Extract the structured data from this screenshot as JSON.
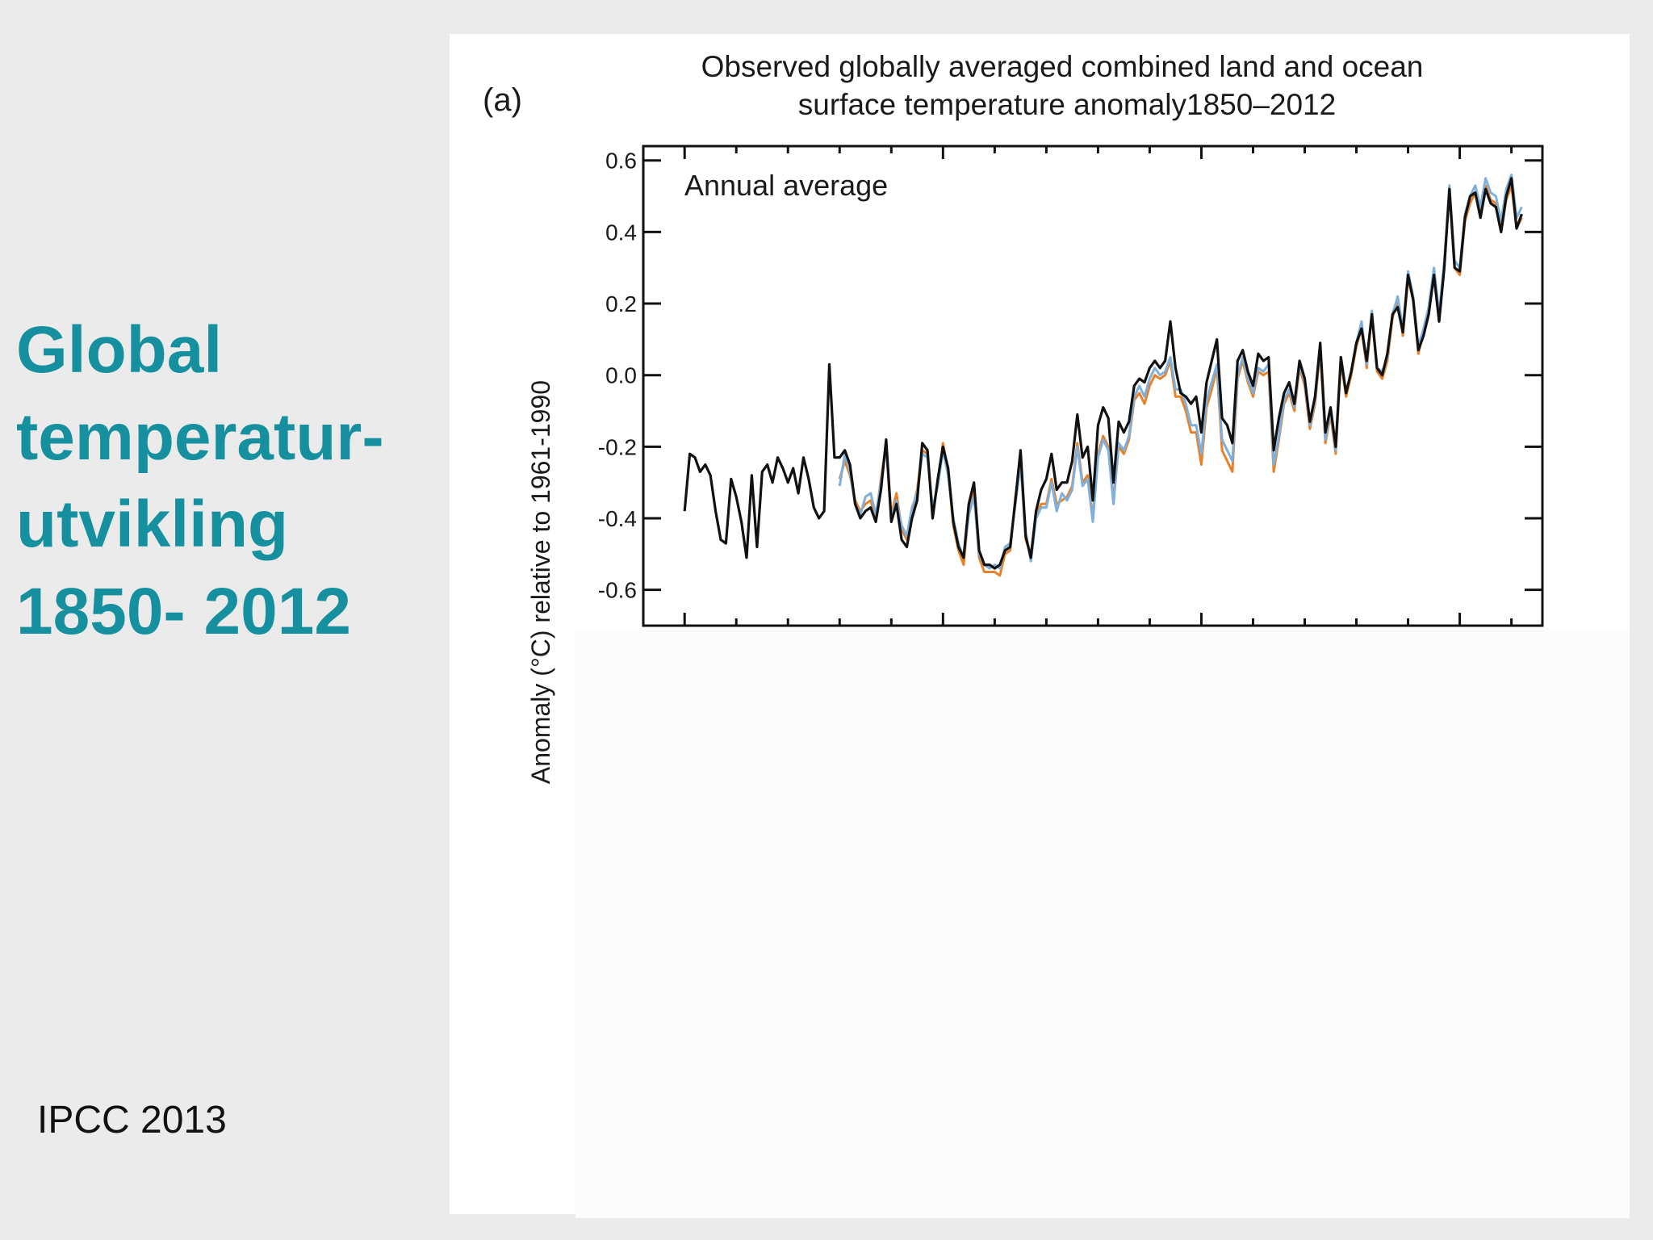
{
  "slide": {
    "title_lines": [
      "Global",
      "temperatur-",
      "utvikling",
      "1850- 2012"
    ],
    "source": "IPCC 2013"
  },
  "chart_data": {
    "type": "line",
    "panel_label": "(a)",
    "title_lines": [
      "Observed globally averaged combined land and ocean",
      "surface temperature anomaly1850–2012"
    ],
    "annotation": "Annual average",
    "ylabel": "Anomaly (°C) relative to 1961-1990",
    "xlim": [
      1842,
      2016
    ],
    "ylim": [
      -0.7,
      0.64
    ],
    "yticks": [
      0.6,
      0.4,
      0.2,
      0.0,
      -0.2,
      -0.4,
      -0.6
    ],
    "ytick_labels": [
      "0.6",
      "0.4",
      "0.2",
      "0.0",
      "-0.2",
      "-0.4",
      "-0.6"
    ],
    "colors": {
      "black": "#111111",
      "orange": "#e8822a",
      "blue": "#7fb0dc"
    },
    "series": [
      {
        "color": "black",
        "x": [
          1850,
          1851,
          1852,
          1853,
          1854,
          1855,
          1856,
          1857,
          1858,
          1859,
          1860,
          1861,
          1862,
          1863,
          1864,
          1865,
          1866,
          1867,
          1868,
          1869,
          1870,
          1871,
          1872,
          1873,
          1874,
          1875,
          1876,
          1877,
          1878,
          1879,
          1880,
          1881,
          1882,
          1883,
          1884,
          1885,
          1886,
          1887,
          1888,
          1889,
          1890,
          1891,
          1892,
          1893,
          1894,
          1895,
          1896,
          1897,
          1898,
          1899,
          1900,
          1901,
          1902,
          1903,
          1904,
          1905,
          1906,
          1907,
          1908,
          1909,
          1910,
          1911,
          1912,
          1913,
          1914,
          1915,
          1916,
          1917,
          1918,
          1919,
          1920,
          1921,
          1922,
          1923,
          1924,
          1925,
          1926,
          1927,
          1928,
          1929,
          1930,
          1931,
          1932,
          1933,
          1934,
          1935,
          1936,
          1937,
          1938,
          1939,
          1940,
          1941,
          1942,
          1943,
          1944,
          1945,
          1946,
          1947,
          1948,
          1949,
          1950,
          1951,
          1952,
          1953,
          1954,
          1955,
          1956,
          1957,
          1958,
          1959,
          1960,
          1961,
          1962,
          1963,
          1964,
          1965,
          1966,
          1967,
          1968,
          1969,
          1970,
          1971,
          1972,
          1973,
          1974,
          1975,
          1976,
          1977,
          1978,
          1979,
          1980,
          1981,
          1982,
          1983,
          1984,
          1985,
          1986,
          1987,
          1988,
          1989,
          1990,
          1991,
          1992,
          1993,
          1994,
          1995,
          1996,
          1997,
          1998,
          1999,
          2000,
          2001,
          2002,
          2003,
          2004,
          2005,
          2006,
          2007,
          2008,
          2009,
          2010,
          2011,
          2012
        ],
        "values": [
          -0.38,
          -0.22,
          -0.23,
          -0.27,
          -0.25,
          -0.28,
          -0.38,
          -0.46,
          -0.47,
          -0.29,
          -0.34,
          -0.41,
          -0.51,
          -0.28,
          -0.48,
          -0.27,
          -0.25,
          -0.3,
          -0.23,
          -0.26,
          -0.3,
          -0.26,
          -0.33,
          -0.23,
          -0.29,
          -0.37,
          -0.4,
          -0.38,
          0.03,
          -0.23,
          -0.23,
          -0.21,
          -0.25,
          -0.36,
          -0.4,
          -0.38,
          -0.37,
          -0.41,
          -0.32,
          -0.18,
          -0.41,
          -0.36,
          -0.46,
          -0.48,
          -0.4,
          -0.35,
          -0.19,
          -0.21,
          -0.4,
          -0.29,
          -0.2,
          -0.26,
          -0.41,
          -0.48,
          -0.51,
          -0.36,
          -0.3,
          -0.49,
          -0.53,
          -0.53,
          -0.54,
          -0.53,
          -0.49,
          -0.48,
          -0.35,
          -0.21,
          -0.45,
          -0.51,
          -0.38,
          -0.32,
          -0.29,
          -0.22,
          -0.32,
          -0.3,
          -0.3,
          -0.24,
          -0.11,
          -0.23,
          -0.2,
          -0.35,
          -0.14,
          -0.09,
          -0.12,
          -0.3,
          -0.13,
          -0.16,
          -0.13,
          -0.03,
          -0.01,
          -0.02,
          0.02,
          0.04,
          0.02,
          0.04,
          0.15,
          0.02,
          -0.05,
          -0.06,
          -0.08,
          -0.06,
          -0.16,
          -0.02,
          0.04,
          0.1,
          -0.12,
          -0.14,
          -0.19,
          0.04,
          0.07,
          0.01,
          -0.03,
          0.06,
          0.04,
          0.05,
          -0.21,
          -0.12,
          -0.05,
          -0.02,
          -0.08,
          0.04,
          -0.01,
          -0.13,
          -0.06,
          0.09,
          -0.16,
          -0.09,
          -0.2,
          0.05,
          -0.05,
          0.01,
          0.09,
          0.13,
          0.04,
          0.17,
          0.02,
          0.0,
          0.06,
          0.17,
          0.19,
          0.12,
          0.28,
          0.21,
          0.07,
          0.11,
          0.17,
          0.28,
          0.15,
          0.3,
          0.52,
          0.3,
          0.29,
          0.44,
          0.5,
          0.51,
          0.44,
          0.52,
          0.48,
          0.47,
          0.4,
          0.5,
          0.55,
          0.41,
          0.45
        ]
      },
      {
        "color": "orange",
        "x": [
          1880,
          1881,
          1882,
          1883,
          1884,
          1885,
          1886,
          1887,
          1888,
          1889,
          1890,
          1891,
          1892,
          1893,
          1894,
          1895,
          1896,
          1897,
          1898,
          1899,
          1900,
          1901,
          1902,
          1903,
          1904,
          1905,
          1906,
          1907,
          1908,
          1909,
          1910,
          1911,
          1912,
          1913,
          1914,
          1915,
          1916,
          1917,
          1918,
          1919,
          1920,
          1921,
          1922,
          1923,
          1924,
          1925,
          1926,
          1927,
          1928,
          1929,
          1930,
          1931,
          1932,
          1933,
          1934,
          1935,
          1936,
          1937,
          1938,
          1939,
          1940,
          1941,
          1942,
          1943,
          1944,
          1945,
          1946,
          1947,
          1948,
          1949,
          1950,
          1951,
          1952,
          1953,
          1954,
          1955,
          1956,
          1957,
          1958,
          1959,
          1960,
          1961,
          1962,
          1963,
          1964,
          1965,
          1966,
          1967,
          1968,
          1969,
          1970,
          1971,
          1972,
          1973,
          1974,
          1975,
          1976,
          1977,
          1978,
          1979,
          1980,
          1981,
          1982,
          1983,
          1984,
          1985,
          1986,
          1987,
          1988,
          1989,
          1990,
          1991,
          1992,
          1993,
          1994,
          1995,
          1996,
          1997,
          1998,
          1999,
          2000,
          2001,
          2002,
          2003,
          2004,
          2005,
          2006,
          2007,
          2008,
          2009,
          2010,
          2011,
          2012
        ],
        "values": [
          -0.29,
          -0.24,
          -0.28,
          -0.35,
          -0.38,
          -0.36,
          -0.35,
          -0.4,
          -0.29,
          -0.19,
          -0.39,
          -0.33,
          -0.43,
          -0.46,
          -0.38,
          -0.32,
          -0.21,
          -0.22,
          -0.38,
          -0.3,
          -0.19,
          -0.27,
          -0.42,
          -0.49,
          -0.53,
          -0.38,
          -0.32,
          -0.51,
          -0.55,
          -0.55,
          -0.55,
          -0.56,
          -0.5,
          -0.49,
          -0.34,
          -0.24,
          -0.46,
          -0.5,
          -0.39,
          -0.36,
          -0.36,
          -0.29,
          -0.36,
          -0.35,
          -0.34,
          -0.31,
          -0.19,
          -0.3,
          -0.28,
          -0.4,
          -0.22,
          -0.17,
          -0.2,
          -0.35,
          -0.2,
          -0.22,
          -0.18,
          -0.07,
          -0.05,
          -0.08,
          -0.03,
          0.0,
          -0.01,
          0.0,
          0.04,
          -0.06,
          -0.06,
          -0.1,
          -0.16,
          -0.16,
          -0.25,
          -0.09,
          -0.04,
          0.02,
          -0.21,
          -0.24,
          -0.27,
          -0.01,
          0.04,
          -0.02,
          -0.06,
          0.01,
          0.0,
          0.01,
          -0.27,
          -0.18,
          -0.08,
          -0.05,
          -0.1,
          0.02,
          -0.03,
          -0.15,
          -0.08,
          0.07,
          -0.19,
          -0.11,
          -0.22,
          0.04,
          -0.06,
          0.0,
          0.08,
          0.13,
          0.02,
          0.17,
          0.01,
          -0.01,
          0.04,
          0.16,
          0.21,
          0.11,
          0.27,
          0.21,
          0.06,
          0.12,
          0.18,
          0.29,
          0.15,
          0.31,
          0.51,
          0.3,
          0.28,
          0.43,
          0.48,
          0.51,
          0.45,
          0.53,
          0.49,
          0.48,
          0.4,
          0.49,
          0.53,
          0.41,
          0.44
        ]
      },
      {
        "color": "blue",
        "x": [
          1880,
          1881,
          1882,
          1883,
          1884,
          1885,
          1886,
          1887,
          1888,
          1889,
          1890,
          1891,
          1892,
          1893,
          1894,
          1895,
          1896,
          1897,
          1898,
          1899,
          1900,
          1901,
          1902,
          1903,
          1904,
          1905,
          1906,
          1907,
          1908,
          1909,
          1910,
          1911,
          1912,
          1913,
          1914,
          1915,
          1916,
          1917,
          1918,
          1919,
          1920,
          1921,
          1922,
          1923,
          1924,
          1925,
          1926,
          1927,
          1928,
          1929,
          1930,
          1931,
          1932,
          1933,
          1934,
          1935,
          1936,
          1937,
          1938,
          1939,
          1940,
          1941,
          1942,
          1943,
          1944,
          1945,
          1946,
          1947,
          1948,
          1949,
          1950,
          1951,
          1952,
          1953,
          1954,
          1955,
          1956,
          1957,
          1958,
          1959,
          1960,
          1961,
          1962,
          1963,
          1964,
          1965,
          1966,
          1967,
          1968,
          1969,
          1970,
          1971,
          1972,
          1973,
          1974,
          1975,
          1976,
          1977,
          1978,
          1979,
          1980,
          1981,
          1982,
          1983,
          1984,
          1985,
          1986,
          1987,
          1988,
          1989,
          1990,
          1991,
          1992,
          1993,
          1994,
          1995,
          1996,
          1997,
          1998,
          1999,
          2000,
          2001,
          2002,
          2003,
          2004,
          2005,
          2006,
          2007,
          2008,
          2009,
          2010,
          2011,
          2012
        ],
        "values": [
          -0.31,
          -0.22,
          -0.27,
          -0.36,
          -0.39,
          -0.34,
          -0.33,
          -0.39,
          -0.3,
          -0.2,
          -0.4,
          -0.35,
          -0.42,
          -0.45,
          -0.37,
          -0.33,
          -0.22,
          -0.23,
          -0.37,
          -0.31,
          -0.21,
          -0.28,
          -0.4,
          -0.47,
          -0.51,
          -0.39,
          -0.34,
          -0.5,
          -0.53,
          -0.54,
          -0.53,
          -0.54,
          -0.48,
          -0.47,
          -0.36,
          -0.25,
          -0.44,
          -0.52,
          -0.4,
          -0.37,
          -0.37,
          -0.3,
          -0.38,
          -0.33,
          -0.35,
          -0.32,
          -0.2,
          -0.31,
          -0.29,
          -0.41,
          -0.23,
          -0.18,
          -0.21,
          -0.36,
          -0.19,
          -0.21,
          -0.17,
          -0.06,
          -0.03,
          -0.06,
          -0.01,
          0.02,
          0.0,
          0.01,
          0.05,
          -0.04,
          -0.04,
          -0.08,
          -0.14,
          -0.14,
          -0.22,
          -0.07,
          -0.02,
          0.03,
          -0.18,
          -0.21,
          -0.24,
          0.0,
          0.05,
          -0.01,
          -0.05,
          0.02,
          0.01,
          0.03,
          -0.25,
          -0.17,
          -0.07,
          -0.04,
          -0.09,
          0.03,
          -0.02,
          -0.14,
          -0.07,
          0.08,
          -0.18,
          -0.1,
          -0.21,
          0.05,
          -0.05,
          0.01,
          0.09,
          0.15,
          0.03,
          0.18,
          0.02,
          0.01,
          0.05,
          0.17,
          0.22,
          0.13,
          0.29,
          0.22,
          0.08,
          0.13,
          0.19,
          0.3,
          0.17,
          0.32,
          0.53,
          0.32,
          0.3,
          0.45,
          0.5,
          0.53,
          0.47,
          0.55,
          0.51,
          0.5,
          0.43,
          0.52,
          0.56,
          0.44,
          0.47
        ]
      }
    ]
  }
}
